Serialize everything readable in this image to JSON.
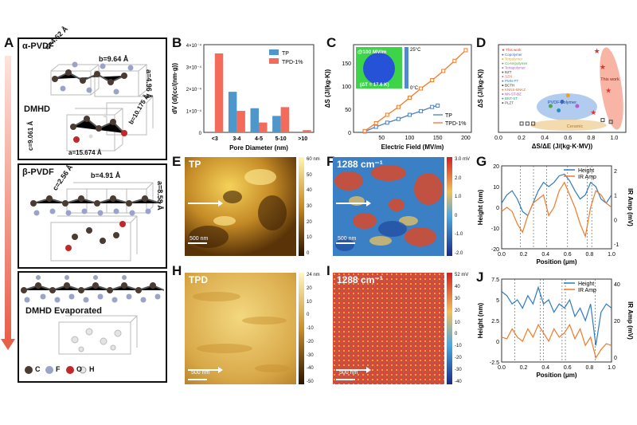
{
  "panels": {
    "A": "A",
    "B": "B",
    "C": "C",
    "D": "D",
    "E": "E",
    "F": "F",
    "G": "G",
    "H": "H",
    "I": "I",
    "J": "J"
  },
  "panelA": {
    "alpha": {
      "title": "α-PVDF",
      "lat_c": "c=4.62 Å",
      "lat_b": "b=9.64 Å",
      "lat_a": "a=4.96 Å"
    },
    "dmhd": {
      "title": "DMHD",
      "lat_c": "c=9.061 Å",
      "lat_b": "b=10.175 Å",
      "lat_a": "a=15.674 Å"
    },
    "beta": {
      "title": "β-PVDF",
      "lat_c": "c=2.56 Å",
      "lat_b": "b=4.91 Å",
      "lat_a": "a=8.58 Å"
    },
    "evap": {
      "title": "DMHD Evaporated"
    },
    "legend": [
      {
        "label": "C",
        "color": "#4a3b33"
      },
      {
        "label": "F",
        "color": "#9aa3c8"
      },
      {
        "label": "O",
        "color": "#c0282b"
      },
      {
        "label": "H",
        "color": "#e8e8e8"
      }
    ],
    "arrow_color": "#e9604a"
  },
  "chart_data": [
    {
      "id": "B",
      "type": "bar",
      "categories": [
        "<3",
        "3-4",
        "4-5",
        "5-10",
        ">10"
      ],
      "series": [
        {
          "name": "TP",
          "color": "#4e97cd",
          "values": [
            0,
            1.85,
            1.1,
            0.75,
            0
          ]
        },
        {
          "name": "TPD-1%",
          "color": "#f26b5b",
          "values": [
            3.6,
            0.98,
            0.45,
            1.15,
            0.1
          ]
        }
      ],
      "xlabel": "Pore Diameter (nm)",
      "ylabel": "dV (d)(cc/(nm·g))",
      "ylim": [
        0,
        4
      ],
      "ytick_labels": [
        "0",
        "1×10⁻⁴",
        "2×10⁻⁴",
        "3×10⁻⁴",
        "4×10⁻⁴"
      ]
    },
    {
      "id": "C",
      "type": "line",
      "series": [
        {
          "name": "TP",
          "color": "#4e7fbf",
          "x": [
            20,
            40,
            60,
            80,
            100,
            120,
            140,
            150
          ],
          "y": [
            2,
            12,
            21,
            29,
            38,
            46,
            55,
            58
          ]
        },
        {
          "name": "TPD-1%",
          "color": "#f07a2a",
          "x": [
            20,
            40,
            60,
            80,
            100,
            120,
            140,
            160,
            180,
            200
          ],
          "y": [
            3,
            20,
            38,
            55,
            75,
            95,
            113,
            133,
            155,
            178
          ]
        }
      ],
      "xlabel": "Electric Field (MV/m)",
      "ylabel": "ΔS (J/(kg·K))",
      "xlim": [
        0,
        210
      ],
      "ylim": [
        0,
        190
      ],
      "xticks": [
        50,
        100,
        150,
        200
      ],
      "yticks": [
        0,
        50,
        100,
        150
      ],
      "inset": {
        "label": "@100 MV/m",
        "dT": "(ΔT = 17.6 K)",
        "cbar_max": "25°C",
        "cbar_min": "0°C"
      }
    },
    {
      "id": "D",
      "type": "scatter",
      "xlabel": "ΔS/ΔE (J/(kg·K·MV))",
      "ylabel": "ΔS (J/(kg·K))",
      "xticks": [
        "0.0",
        "0.2",
        "0.4",
        "0.6",
        "0.8",
        "1.0"
      ],
      "legend": [
        {
          "label": "Copolymer",
          "color": "#3f63c4"
        },
        {
          "label": "Terpolymer",
          "color": "#f0a020"
        },
        {
          "label": "Co-terpolymer",
          "color": "#4aa84a"
        },
        {
          "label": "Tetrapolymer",
          "color": "#b060c8"
        },
        {
          "label": "BZT",
          "color": "#444"
        },
        {
          "label": "SZH",
          "color": "#e06050"
        },
        {
          "label": "PMN-PT",
          "color": "#2a8ac4"
        },
        {
          "label": "BCTH",
          "color": "#2a2a2a"
        },
        {
          "label": "KNNS-BNKZ",
          "color": "#e07020"
        },
        {
          "label": "NN-ST-BZ",
          "color": "#b04fb0"
        },
        {
          "label": "BNT-ST",
          "color": "#2aa070"
        },
        {
          "label": "PLZT",
          "color": "#444"
        }
      ],
      "highlight_legend": "This work",
      "groups": {
        "polymer": "PVDF-polymer",
        "ceramic": "Ceramic"
      },
      "this_work": {
        "x": [
          0.85,
          0.9,
          0.95,
          0.82
        ],
        "y": [
          0.9,
          0.72,
          0.45,
          0.2
        ]
      }
    },
    {
      "id": "G",
      "type": "line",
      "series": [
        {
          "name": "Height",
          "color": "#2f7bbf"
        },
        {
          "name": "IR Amp",
          "color": "#f07a2a"
        }
      ],
      "xlabel": "Position (μm)",
      "ylabel": "Height (nm)",
      "ylabel2": "IR Amp (mV)",
      "yticks": [
        "20",
        "10",
        "0",
        "-10",
        "-20"
      ],
      "y2ticks": [
        "2",
        "1",
        "0",
        "-1"
      ],
      "xticks": [
        "0.0",
        "0.2",
        "0.4",
        "0.6",
        "0.8",
        "1.0"
      ]
    },
    {
      "id": "J",
      "type": "line",
      "series": [
        {
          "name": "Height",
          "color": "#2f7bbf"
        },
        {
          "name": "IR Amp",
          "color": "#f07a2a"
        }
      ],
      "xlabel": "Position (μm)",
      "ylabel": "Height (nm)",
      "ylabel2": "IR Amp (mV)",
      "yticks": [
        "7.5",
        "5",
        "2.5",
        "0",
        "-2.5"
      ],
      "y2ticks": [
        "40",
        "20",
        "0"
      ],
      "xticks": [
        "0.0",
        "0.2",
        "0.4",
        "0.6",
        "0.8",
        "1.0"
      ]
    }
  ],
  "images": {
    "E": {
      "label": "TP",
      "scale": "500 nm",
      "cbar": [
        "60 nm",
        "50",
        "40",
        "30",
        "20",
        "10",
        "0"
      ]
    },
    "F": {
      "label": "1288 cm⁻¹",
      "scale": "500 nm",
      "cbar": [
        "3.0 mV",
        "2.0",
        "1.0",
        "0",
        "-1.0",
        "-2.0"
      ]
    },
    "H": {
      "label": "TPD",
      "scale": "500 nm",
      "cbar": [
        "24 nm",
        "20",
        "10",
        "0",
        "-10",
        "-20",
        "-30",
        "-40",
        "-50"
      ]
    },
    "I": {
      "label": "1288 cm⁻¹",
      "scale": "500 nm",
      "cbar": [
        "52 mV",
        "40",
        "30",
        "20",
        "10",
        "0",
        "-10",
        "-20",
        "-30",
        "-40"
      ]
    }
  }
}
